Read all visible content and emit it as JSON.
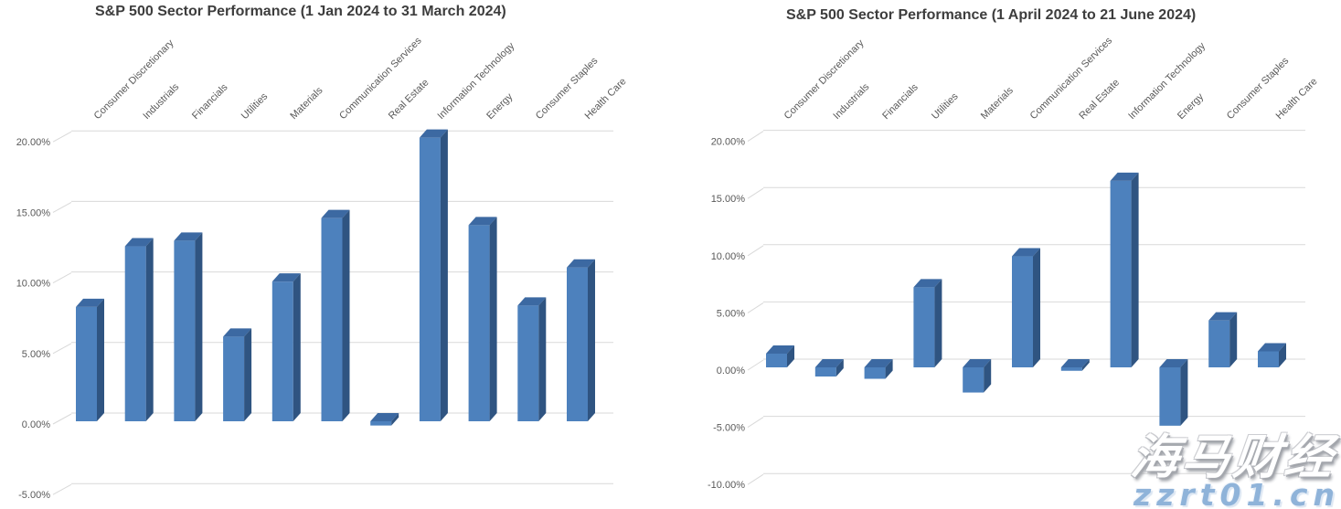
{
  "page": {
    "background": "#ffffff"
  },
  "colors": {
    "bar_front": "#4d81bd",
    "bar_side": "#2f5481",
    "bar_top": "#3c69a2",
    "gridline": "#d9d9d9",
    "axis_text": "#595959",
    "title_text": "#3d3d3d",
    "watermark_url_blue": "#8fb3d9"
  },
  "watermark": {
    "brand": "海马财经",
    "url": "zzrt01.cn"
  },
  "chart_data": [
    {
      "type": "bar",
      "style": "3d-column",
      "title": "S&P 500 Sector Performance (1 Jan 2024 to 31 March 2024)",
      "categories": [
        "Consumer Discretionary",
        "Industrials",
        "Financials",
        "Utilities",
        "Materials",
        "Communication Services",
        "Real Estate",
        "Information Technology",
        "Energy",
        "Consumer Staples",
        "Health Care"
      ],
      "values": [
        8.1,
        12.4,
        12.8,
        6.0,
        9.9,
        14.4,
        -0.3,
        20.1,
        13.9,
        8.2,
        10.9
      ],
      "unit": "%",
      "xlabel": "",
      "ylabel": "",
      "ylim": [
        -5,
        20
      ],
      "ytick_step": 5,
      "ytick_labels": [
        "20.00%",
        "15.00%",
        "10.00%",
        "5.00%",
        "0.00%",
        "-5.00%"
      ],
      "grid": true,
      "legend": false
    },
    {
      "type": "bar",
      "style": "3d-column",
      "title": "S&P 500 Sector Performance (1 April 2024 to 21 June 2024)",
      "categories": [
        "Consumer Discretionary",
        "Industrials",
        "Financials",
        "Utilities",
        "Materials",
        "Communication Services",
        "Real Estate",
        "Information Technology",
        "Energy",
        "Consumer Staples",
        "Health Care"
      ],
      "values": [
        1.2,
        -0.8,
        -1.0,
        7.0,
        -2.2,
        9.7,
        -0.3,
        16.3,
        -5.1,
        4.1,
        1.4
      ],
      "unit": "%",
      "xlabel": "",
      "ylabel": "",
      "ylim": [
        -10,
        20
      ],
      "ytick_step": 5,
      "ytick_labels": [
        "20.00%",
        "15.00%",
        "10.00%",
        "5.00%",
        "0.00%",
        "-5.00%",
        "-10.00%"
      ],
      "grid": true,
      "legend": false
    }
  ]
}
